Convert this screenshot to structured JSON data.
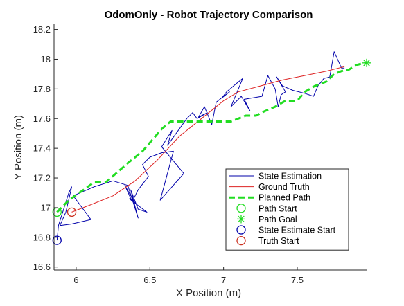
{
  "chart_data": {
    "type": "line",
    "title": "OdomOnly - Robot Trajectory Comparison",
    "xlabel": "X Position (m)",
    "ylabel": "Y Position (m)",
    "xlim": [
      5.85,
      7.97
    ],
    "ylim": [
      16.58,
      18.24
    ],
    "xticks": [
      6,
      6.5,
      7,
      7.5
    ],
    "xtick_labels": [
      "6",
      "6.5",
      "7",
      "7.5"
    ],
    "yticks": [
      16.6,
      16.8,
      17,
      17.2,
      17.4,
      17.6,
      17.8,
      18,
      18.2
    ],
    "ytick_labels": [
      "16.6",
      "16.8",
      "17",
      "17.2",
      "17.4",
      "17.6",
      "17.8",
      "18",
      "18.2"
    ],
    "grid": false,
    "legend_position": "lower-right",
    "series": [
      {
        "name": "State Estimation",
        "color": "#0000aa",
        "style": "solid",
        "points": [
          [
            5.87,
            16.78
          ],
          [
            5.88,
            16.88
          ],
          [
            5.95,
            17.1
          ],
          [
            5.97,
            17.14
          ],
          [
            5.93,
            16.97
          ],
          [
            5.89,
            16.88
          ],
          [
            5.97,
            16.89
          ],
          [
            6.1,
            16.92
          ],
          [
            5.98,
            17.08
          ],
          [
            6.12,
            17.14
          ],
          [
            6.25,
            17.18
          ],
          [
            6.35,
            17.15
          ],
          [
            6.42,
            16.93
          ],
          [
            6.37,
            17.12
          ],
          [
            6.42,
            16.99
          ],
          [
            6.48,
            16.97
          ],
          [
            6.36,
            17.06
          ],
          [
            6.4,
            17.03
          ],
          [
            6.33,
            17.15
          ],
          [
            6.38,
            17.04
          ],
          [
            6.42,
            17.12
          ],
          [
            6.49,
            17.21
          ],
          [
            6.45,
            17.29
          ],
          [
            6.5,
            17.34
          ],
          [
            6.58,
            17.37
          ],
          [
            6.66,
            17.38
          ],
          [
            6.57,
            17.05
          ],
          [
            6.73,
            17.23
          ],
          [
            6.58,
            17.41
          ],
          [
            6.65,
            17.52
          ],
          [
            6.62,
            17.42
          ],
          [
            6.75,
            17.6
          ],
          [
            6.79,
            17.64
          ],
          [
            6.82,
            17.6
          ],
          [
            6.89,
            17.64
          ],
          [
            6.83,
            17.61
          ],
          [
            6.87,
            17.68
          ],
          [
            6.92,
            17.56
          ],
          [
            6.95,
            17.71
          ],
          [
            7.0,
            17.75
          ],
          [
            7.04,
            17.78
          ],
          [
            6.99,
            17.74
          ],
          [
            7.02,
            17.78
          ],
          [
            7.08,
            17.83
          ],
          [
            7.13,
            17.87
          ],
          [
            7.05,
            17.68
          ],
          [
            7.12,
            17.75
          ],
          [
            7.18,
            17.65
          ],
          [
            7.14,
            17.73
          ],
          [
            7.26,
            17.75
          ],
          [
            7.3,
            17.89
          ],
          [
            7.35,
            17.8
          ],
          [
            7.37,
            17.68
          ],
          [
            7.39,
            17.76
          ],
          [
            7.42,
            17.78
          ],
          [
            7.36,
            17.88
          ],
          [
            7.4,
            17.82
          ],
          [
            7.47,
            17.79
          ],
          [
            7.55,
            17.77
          ],
          [
            7.61,
            17.75
          ],
          [
            7.64,
            17.82
          ],
          [
            7.68,
            17.87
          ],
          [
            7.72,
            17.88
          ],
          [
            7.75,
            18.05
          ],
          [
            7.8,
            17.94
          ],
          [
            7.82,
            17.94
          ]
        ]
      },
      {
        "name": "Ground Truth",
        "color": "#dd2222",
        "style": "solid",
        "points": [
          [
            5.97,
            16.97
          ],
          [
            6.1,
            17.02
          ],
          [
            6.25,
            17.08
          ],
          [
            6.4,
            17.18
          ],
          [
            6.55,
            17.32
          ],
          [
            6.7,
            17.48
          ],
          [
            6.85,
            17.6
          ],
          [
            7.0,
            17.72
          ],
          [
            7.1,
            17.78
          ],
          [
            7.25,
            17.82
          ],
          [
            7.4,
            17.86
          ],
          [
            7.55,
            17.89
          ],
          [
            7.7,
            17.92
          ],
          [
            7.82,
            17.95
          ]
        ]
      },
      {
        "name": "Planned Path",
        "color": "#22dd22",
        "style": "dashed",
        "points": [
          [
            5.87,
            16.97
          ],
          [
            5.95,
            17.05
          ],
          [
            6.05,
            17.12
          ],
          [
            6.12,
            17.17
          ],
          [
            6.2,
            17.17
          ],
          [
            6.27,
            17.23
          ],
          [
            6.35,
            17.3
          ],
          [
            6.45,
            17.38
          ],
          [
            6.52,
            17.46
          ],
          [
            6.58,
            17.53
          ],
          [
            6.64,
            17.58
          ],
          [
            6.72,
            17.58
          ],
          [
            6.8,
            17.58
          ],
          [
            6.9,
            17.58
          ],
          [
            7.05,
            17.58
          ],
          [
            7.15,
            17.62
          ],
          [
            7.22,
            17.62
          ],
          [
            7.28,
            17.65
          ],
          [
            7.35,
            17.68
          ],
          [
            7.42,
            17.72
          ],
          [
            7.5,
            17.72
          ],
          [
            7.55,
            17.78
          ],
          [
            7.62,
            17.82
          ],
          [
            7.7,
            17.85
          ],
          [
            7.75,
            17.9
          ],
          [
            7.8,
            17.92
          ],
          [
            7.85,
            17.93
          ],
          [
            7.9,
            17.96
          ],
          [
            7.97,
            17.98
          ]
        ]
      }
    ],
    "markers": [
      {
        "name": "Path Start",
        "symbol": "circle",
        "color": "#22dd22",
        "x": 5.87,
        "y": 16.97
      },
      {
        "name": "Path Goal",
        "symbol": "asterisk",
        "color": "#22dd22",
        "x": 7.97,
        "y": 17.975
      },
      {
        "name": "State Estimate Start",
        "symbol": "circle",
        "color": "#0000aa",
        "x": 5.87,
        "y": 16.78
      },
      {
        "name": "Truth Start",
        "symbol": "circle",
        "color": "#cc3322",
        "x": 5.97,
        "y": 16.97
      }
    ],
    "legend": [
      {
        "label": "State Estimation",
        "kind": "line",
        "color": "#0000aa",
        "dash": false
      },
      {
        "label": "Ground Truth",
        "kind": "line",
        "color": "#dd2222",
        "dash": false
      },
      {
        "label": "Planned Path",
        "kind": "line",
        "color": "#22dd22",
        "dash": true
      },
      {
        "label": "Path Start",
        "kind": "circle",
        "color": "#22dd22"
      },
      {
        "label": "Path Goal",
        "kind": "asterisk",
        "color": "#22dd22"
      },
      {
        "label": "State Estimate Start",
        "kind": "circle",
        "color": "#0000aa"
      },
      {
        "label": "Truth Start",
        "kind": "circle",
        "color": "#cc3322"
      }
    ]
  }
}
